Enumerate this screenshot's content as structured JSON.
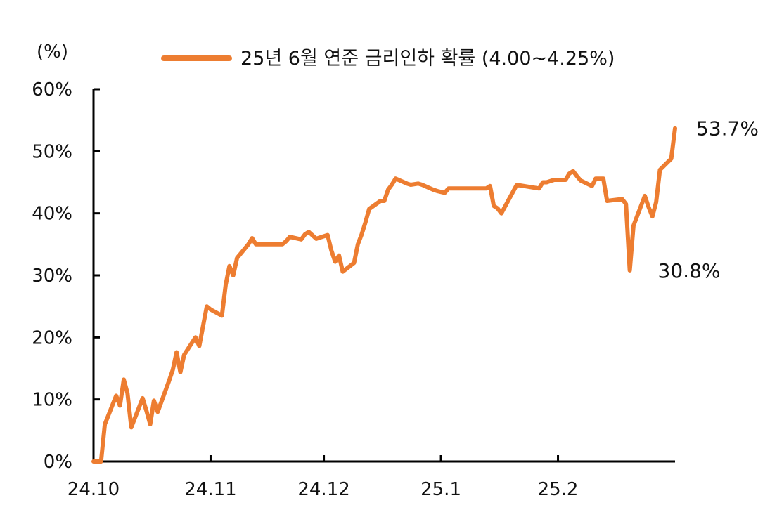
{
  "chart_data": {
    "type": "line",
    "unit_label": "(%)",
    "x_tick_labels": [
      "24.10",
      "24.11",
      "24.12",
      "25.1",
      "25.2"
    ],
    "y_tick_labels": [
      "0%",
      "10%",
      "20%",
      "30%",
      "40%",
      "50%",
      "60%"
    ],
    "ylim": [
      0,
      60
    ],
    "grid": false,
    "legend_position": "top",
    "series": [
      {
        "name": "25년 6월 연준 금리인하 확률 (4.00~4.25%)",
        "color": "#ED7D31",
        "points": [
          [
            "2024-10-01",
            0.0
          ],
          [
            "2024-10-02",
            0.0
          ],
          [
            "2024-10-03",
            0.0
          ],
          [
            "2024-10-04",
            6.0
          ],
          [
            "2024-10-07",
            10.6
          ],
          [
            "2024-10-08",
            9.0
          ],
          [
            "2024-10-09",
            13.2
          ],
          [
            "2024-10-10",
            11.0
          ],
          [
            "2024-10-11",
            5.5
          ],
          [
            "2024-10-14",
            10.2
          ],
          [
            "2024-10-15",
            8.2
          ],
          [
            "2024-10-16",
            6.0
          ],
          [
            "2024-10-17",
            9.8
          ],
          [
            "2024-10-18",
            8.0
          ],
          [
            "2024-10-21",
            13.0
          ],
          [
            "2024-10-22",
            14.8
          ],
          [
            "2024-10-23",
            17.6
          ],
          [
            "2024-10-24",
            14.4
          ],
          [
            "2024-10-25",
            17.2
          ],
          [
            "2024-10-28",
            20.0
          ],
          [
            "2024-10-29",
            18.6
          ],
          [
            "2024-10-30",
            21.8
          ],
          [
            "2024-10-31",
            25.0
          ],
          [
            "2024-11-01",
            24.5
          ],
          [
            "2024-11-04",
            23.5
          ],
          [
            "2024-11-05",
            28.5
          ],
          [
            "2024-11-06",
            31.5
          ],
          [
            "2024-11-07",
            30.0
          ],
          [
            "2024-11-08",
            32.8
          ],
          [
            "2024-11-11",
            35.0
          ],
          [
            "2024-11-12",
            36.0
          ],
          [
            "2024-11-13",
            35.0
          ],
          [
            "2024-11-14",
            35.0
          ],
          [
            "2024-11-15",
            35.0
          ],
          [
            "2024-11-18",
            35.0
          ],
          [
            "2024-11-19",
            35.0
          ],
          [
            "2024-11-20",
            35.0
          ],
          [
            "2024-11-21",
            35.5
          ],
          [
            "2024-11-22",
            36.2
          ],
          [
            "2024-11-25",
            35.8
          ],
          [
            "2024-11-26",
            36.6
          ],
          [
            "2024-11-27",
            37.0
          ],
          [
            "2024-11-29",
            35.9
          ],
          [
            "2024-12-02",
            36.5
          ],
          [
            "2024-12-03",
            34.0
          ],
          [
            "2024-12-04",
            32.2
          ],
          [
            "2024-12-05",
            33.2
          ],
          [
            "2024-12-06",
            30.6
          ],
          [
            "2024-12-09",
            32.0
          ],
          [
            "2024-12-10",
            35.0
          ],
          [
            "2024-12-11",
            36.6
          ],
          [
            "2024-12-12",
            38.5
          ],
          [
            "2024-12-13",
            40.7
          ],
          [
            "2024-12-16",
            42.0
          ],
          [
            "2024-12-17",
            42.0
          ],
          [
            "2024-12-18",
            43.8
          ],
          [
            "2024-12-19",
            44.6
          ],
          [
            "2024-12-20",
            45.6
          ],
          [
            "2024-12-23",
            44.8
          ],
          [
            "2024-12-24",
            44.6
          ],
          [
            "2024-12-26",
            44.8
          ],
          [
            "2024-12-27",
            44.6
          ],
          [
            "2024-12-30",
            43.8
          ],
          [
            "2024-12-31",
            43.6
          ],
          [
            "2025-01-02",
            43.3
          ],
          [
            "2025-01-03",
            44.0
          ],
          [
            "2025-01-06",
            44.0
          ],
          [
            "2025-01-07",
            44.0
          ],
          [
            "2025-01-08",
            44.0
          ],
          [
            "2025-01-10",
            44.0
          ],
          [
            "2025-01-13",
            44.0
          ],
          [
            "2025-01-14",
            44.4
          ],
          [
            "2025-01-15",
            41.2
          ],
          [
            "2025-01-16",
            40.8
          ],
          [
            "2025-01-17",
            40.0
          ],
          [
            "2025-01-21",
            44.5
          ],
          [
            "2025-01-22",
            44.5
          ],
          [
            "2025-01-23",
            44.4
          ],
          [
            "2025-01-24",
            44.3
          ],
          [
            "2025-01-27",
            44.0
          ],
          [
            "2025-01-28",
            45.0
          ],
          [
            "2025-01-29",
            45.0
          ],
          [
            "2025-01-30",
            45.2
          ],
          [
            "2025-01-31",
            45.4
          ],
          [
            "2025-02-03",
            45.4
          ],
          [
            "2025-02-04",
            46.4
          ],
          [
            "2025-02-05",
            46.8
          ],
          [
            "2025-02-06",
            46.0
          ],
          [
            "2025-02-07",
            45.3
          ],
          [
            "2025-02-10",
            44.4
          ],
          [
            "2025-02-11",
            45.6
          ],
          [
            "2025-02-12",
            45.6
          ],
          [
            "2025-02-13",
            45.6
          ],
          [
            "2025-02-14",
            42.0
          ],
          [
            "2025-02-18",
            42.3
          ],
          [
            "2025-02-19",
            41.5
          ],
          [
            "2025-02-20",
            30.8
          ],
          [
            "2025-02-21",
            38.0
          ],
          [
            "2025-02-24",
            42.8
          ],
          [
            "2025-02-25",
            41.0
          ],
          [
            "2025-02-26",
            39.5
          ],
          [
            "2025-02-27",
            41.8
          ],
          [
            "2025-02-28",
            47.0
          ],
          [
            "2025-03-03",
            48.8
          ],
          [
            "2025-03-04",
            53.7
          ]
        ]
      }
    ],
    "annotations": [
      {
        "text": "53.7%",
        "x": "2025-03-04",
        "y": 53.7,
        "position": "right"
      },
      {
        "text": "30.8%",
        "x": "2025-02-20",
        "y": 30.8,
        "position": "below-right"
      }
    ]
  }
}
